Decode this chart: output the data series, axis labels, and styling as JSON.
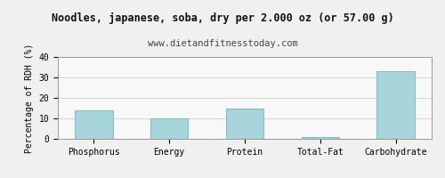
{
  "title": "Noodles, japanese, soba, dry per 2.000 oz (or 57.00 g)",
  "subtitle": "www.dietandfitnesstoday.com",
  "categories": [
    "Phosphorus",
    "Energy",
    "Protein",
    "Total-Fat",
    "Carbohydrate"
  ],
  "values": [
    14,
    10,
    15,
    1,
    33
  ],
  "bar_color": "#a8d4dc",
  "bar_edge_color": "#88bcc8",
  "ylabel": "Percentage of RDH (%)",
  "ylim": [
    0,
    40
  ],
  "yticks": [
    0,
    10,
    20,
    30,
    40
  ],
  "background_color": "#f0f0f0",
  "plot_bg_color": "#f8f8f8",
  "grid_color": "#d0d0d0",
  "title_fontsize": 8.5,
  "subtitle_fontsize": 7.5,
  "ylabel_fontsize": 7,
  "tick_fontsize": 7
}
